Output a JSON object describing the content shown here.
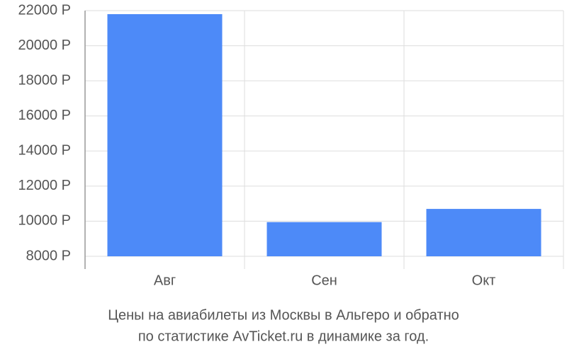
{
  "chart_data": {
    "type": "bar",
    "title": [
      "Цены на авиабилеты из Москвы в Альгеро и обратно",
      "по статистике AvTicket.ru в динамике за год."
    ],
    "categories": [
      "Авг",
      "Сен",
      "Окт"
    ],
    "values": [
      21800,
      9950,
      10700
    ],
    "color": "#4d8af8",
    "ylim": [
      8000,
      22000
    ],
    "yticks": [
      {
        "value": 8000,
        "label": "8000 Р"
      },
      {
        "value": 10000,
        "label": "10000 Р"
      },
      {
        "value": 12000,
        "label": "12000 Р"
      },
      {
        "value": 14000,
        "label": "14000 Р"
      },
      {
        "value": 16000,
        "label": "16000 Р"
      },
      {
        "value": 18000,
        "label": "18000 Р"
      },
      {
        "value": 20000,
        "label": "20000 Р"
      },
      {
        "value": 22000,
        "label": "22000 Р"
      }
    ],
    "grid": true
  }
}
